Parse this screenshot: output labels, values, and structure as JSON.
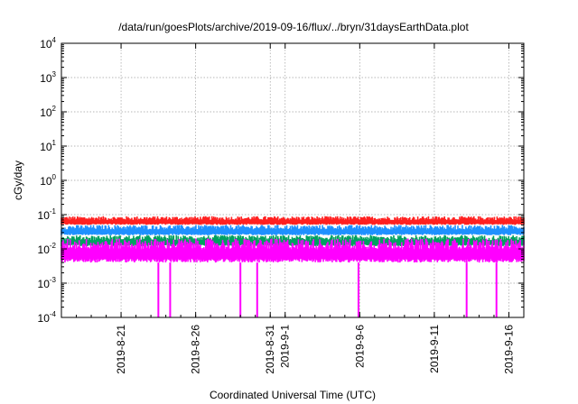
{
  "chart_data": {
    "type": "area",
    "title": "/data/run/goesPlots/archive/2019-09-16/flux/../bryn/31daysEarthData.plot",
    "xlabel": "Coordinated Universal Time (UTC)",
    "ylabel": "cGy/day",
    "yscale": "log",
    "ylim": [
      0.0001,
      10000
    ],
    "xlim": [
      "2019-08-17",
      "2019-09-17"
    ],
    "grid": true,
    "y_ticks": [
      {
        "base": "10",
        "exp": "-4",
        "value": 0.0001
      },
      {
        "base": "10",
        "exp": "-3",
        "value": 0.001
      },
      {
        "base": "10",
        "exp": "-2",
        "value": 0.01
      },
      {
        "base": "10",
        "exp": "-1",
        "value": 0.1
      },
      {
        "base": "10",
        "exp": "0",
        "value": 1
      },
      {
        "base": "10",
        "exp": "1",
        "value": 10
      },
      {
        "base": "10",
        "exp": "2",
        "value": 100
      },
      {
        "base": "10",
        "exp": "3",
        "value": 1000
      },
      {
        "base": "10",
        "exp": "4",
        "value": 10000
      }
    ],
    "x_ticks": [
      {
        "label": "2019-8-21",
        "date": "2019-08-21"
      },
      {
        "label": "2019-8-26",
        "date": "2019-08-26"
      },
      {
        "label": "2019-8-31",
        "date": "2019-08-31"
      },
      {
        "label": "2019-9-1",
        "date": "2019-09-01"
      },
      {
        "label": "2019-9-6",
        "date": "2019-09-06"
      },
      {
        "label": "2019-9-11",
        "date": "2019-09-11"
      },
      {
        "label": "2019-9-16",
        "date": "2019-09-16"
      }
    ],
    "series": [
      {
        "color": "#ff2020",
        "typical_min": 0.05,
        "typical_max": 0.09
      },
      {
        "color": "#1e90ff",
        "typical_min": 0.025,
        "typical_max": 0.05
      },
      {
        "color": "#00a060",
        "typical_min": 0.012,
        "typical_max": 0.025
      },
      {
        "color": "#ff00ff",
        "typical_min": 0.004,
        "typical_max": 0.02,
        "dropouts": [
          "2019-08-23T12:00",
          "2019-08-24T07:00",
          "2019-08-29T00:00",
          "2019-08-30T03:00",
          "2019-09-05T22:00",
          "2019-09-13T04:00",
          "2019-09-15T04:00"
        ]
      }
    ]
  }
}
